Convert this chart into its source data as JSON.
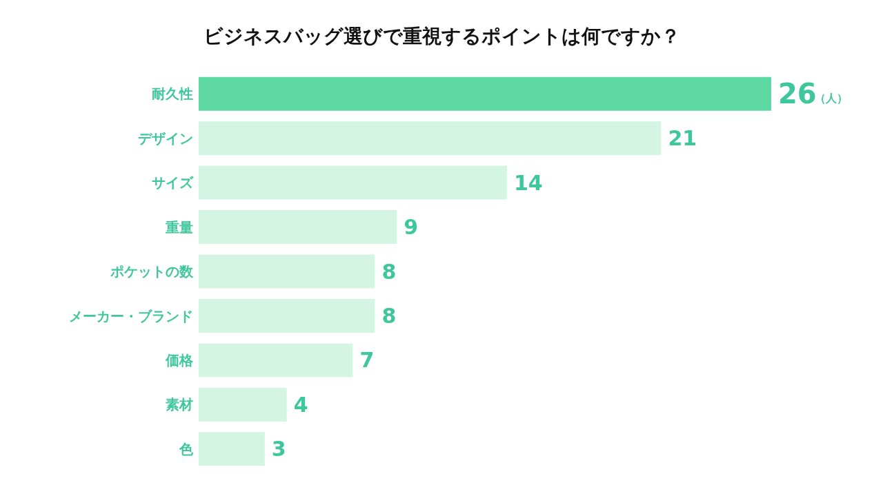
{
  "chart_data": {
    "type": "bar",
    "orientation": "horizontal",
    "title": "ビジネスバッグ選びで重視するポイントは何ですか？",
    "categories": [
      "耐久性",
      "デザイン",
      "サイズ",
      "重量",
      "ポケットの数",
      "メーカー・ブランド",
      "価格",
      "素材",
      "色"
    ],
    "values": [
      26,
      21,
      14,
      9,
      8,
      8,
      7,
      4,
      3
    ],
    "colors": [
      "#5fd9a4",
      "#d4f5e4",
      "#d4f5e4",
      "#d4f5e4",
      "#d4f5e4",
      "#d4f5e4",
      "#d4f5e4",
      "#d4f5e4",
      "#d4f5e4"
    ],
    "data_labels": true,
    "grid": false,
    "legend": false,
    "annotations": [
      "（人）"
    ]
  }
}
